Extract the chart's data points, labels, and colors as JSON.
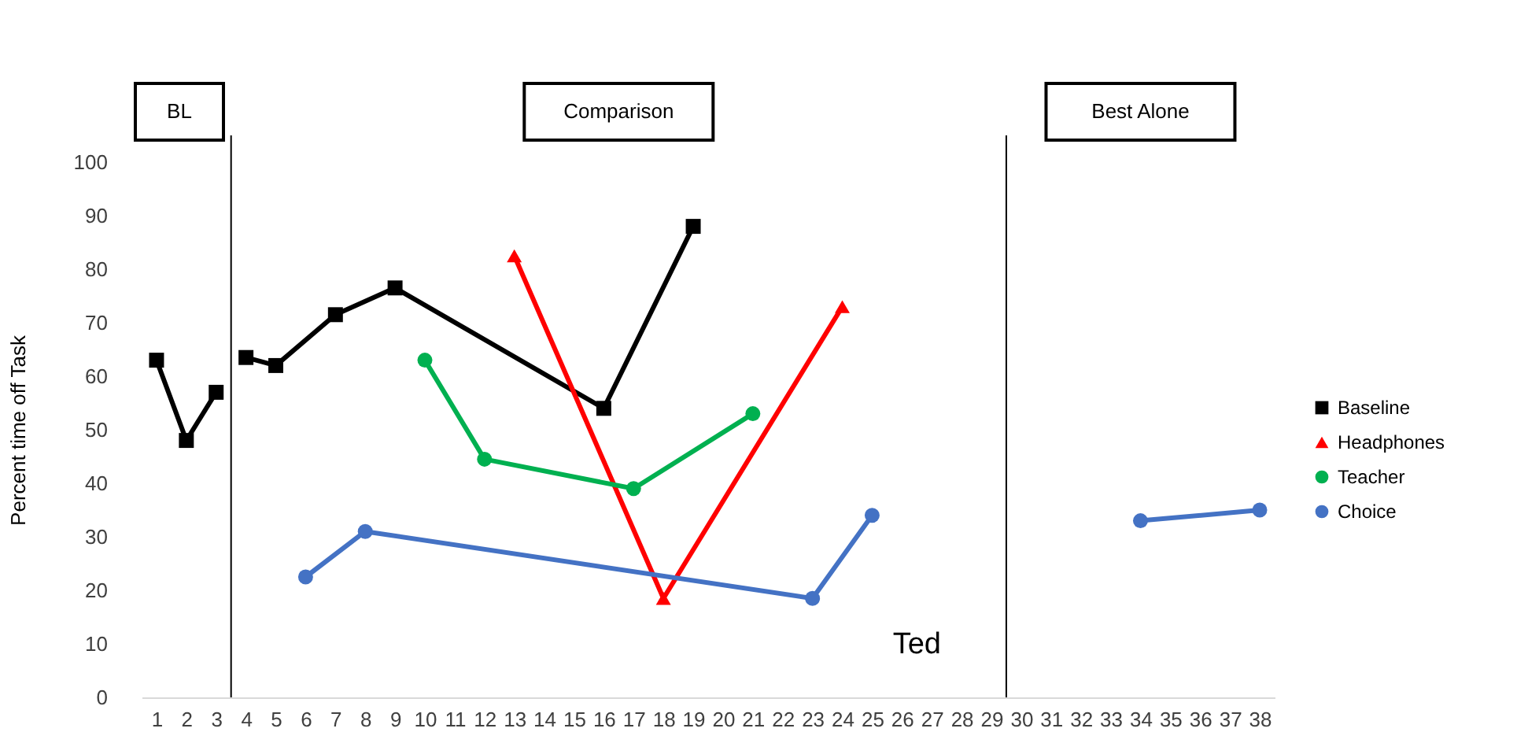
{
  "chart_data": {
    "type": "line",
    "ylabel": "Percent time off Task",
    "xlim": [
      0.5,
      38.5
    ],
    "xticks": [
      1,
      2,
      3,
      4,
      5,
      6,
      7,
      8,
      9,
      10,
      11,
      12,
      13,
      14,
      15,
      16,
      17,
      18,
      19,
      20,
      21,
      22,
      23,
      24,
      25,
      26,
      27,
      28,
      29,
      30,
      31,
      32,
      33,
      34,
      35,
      36,
      37,
      38
    ],
    "ylim": [
      0,
      100
    ],
    "yticks": [
      0,
      10,
      20,
      30,
      40,
      50,
      60,
      70,
      80,
      90,
      100
    ],
    "series": [
      {
        "name": "Baseline",
        "color": "#000000",
        "marker": "square",
        "x": [
          1,
          2,
          3,
          4,
          5,
          7,
          9,
          16,
          19
        ],
        "values": [
          63,
          48,
          57,
          63.5,
          62,
          71.5,
          76.5,
          54,
          88
        ]
      },
      {
        "name": "Headphones",
        "color": "#ff0000",
        "marker": "triangle",
        "x": [
          13,
          18,
          24
        ],
        "values": [
          82.5,
          18.5,
          73
        ]
      },
      {
        "name": "Teacher",
        "color": "#00b050",
        "marker": "circle",
        "x": [
          10,
          12,
          17,
          21
        ],
        "values": [
          63,
          44.5,
          39,
          53
        ]
      },
      {
        "name": "Choice",
        "color": "#4472c4",
        "marker": "circle",
        "x": [
          6,
          8,
          23,
          25,
          34,
          38
        ],
        "values": [
          22.5,
          31,
          18.5,
          34,
          33,
          35
        ]
      }
    ],
    "ref_lines": [
      {
        "axis": "x",
        "value": 3.5,
        "color": "#000000"
      },
      {
        "axis": "x",
        "value": 29.5,
        "color": "#000000"
      }
    ],
    "annotations": [
      "BL",
      "Comparison",
      "Best Alone",
      "Ted"
    ],
    "legend": "right",
    "grid": false,
    "line_style": "solid"
  }
}
